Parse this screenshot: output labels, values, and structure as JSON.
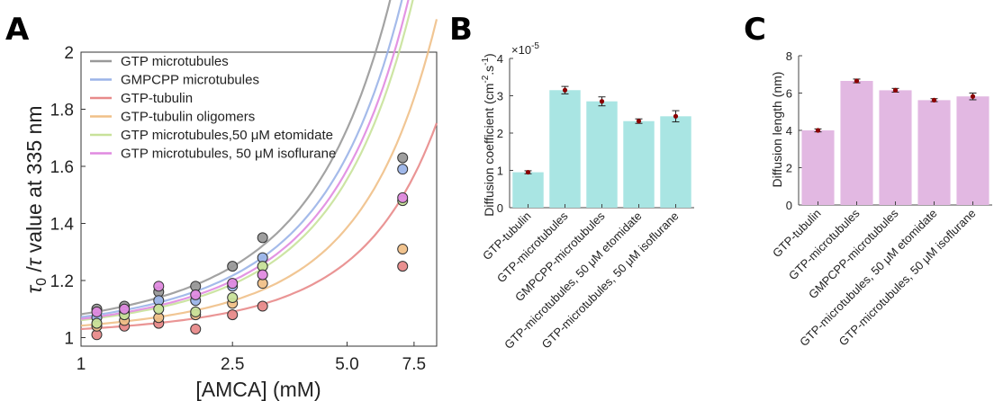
{
  "panel_labels": {
    "a": "A",
    "b": "B",
    "c": "C"
  },
  "chart_data": [
    {
      "panel": "A",
      "type": "scatter",
      "xlabel": "[AMCA] (mM)",
      "ylabel_parts": {
        "tau": "τ",
        "sub": "0",
        "slash": " /",
        "tau2": "τ",
        "rest": " value at 335 nm"
      },
      "xscale": "log",
      "xlim": [
        1,
        8.6
      ],
      "ylim": [
        0.97,
        2.0
      ],
      "xticks": [
        1,
        2.5,
        5.0,
        7.5
      ],
      "xtick_labels": [
        "1",
        "2.5",
        "5.0",
        "7.5"
      ],
      "yticks": [
        1,
        1.2,
        1.4,
        1.6,
        1.8,
        2
      ],
      "ytick_labels": [
        "1",
        "1.2",
        "1.4",
        "1.6",
        "1.8",
        "2"
      ],
      "legend_position": "top-left",
      "series": [
        {
          "name": "GTP microtubules",
          "color": "#999999",
          "x": [
            1.1,
            1.3,
            1.6,
            2.0,
            2.5,
            3.0,
            7.0
          ],
          "y": [
            1.1,
            1.11,
            1.16,
            1.18,
            1.25,
            1.35,
            1.63
          ],
          "fit_x": [
            1.0,
            8.6
          ],
          "fit_a": 1.0,
          "fit_b": 0.0765,
          "fit_c": 0.0053,
          "fit_p": 2.6
        },
        {
          "name": "GMPCPP microtubules",
          "color": "#9bb4e8",
          "x": [
            1.1,
            1.3,
            1.6,
            2.0,
            2.5,
            3.0,
            7.0
          ],
          "y": [
            1.07,
            1.09,
            1.13,
            1.13,
            1.18,
            1.28,
            1.59
          ],
          "fit_a": 1.0,
          "fit_b": 0.067,
          "fit_c": 0.0046,
          "fit_p": 2.6
        },
        {
          "name": "GTP-tubulin",
          "color": "#e88a8a",
          "x": [
            1.1,
            1.3,
            1.6,
            2.0,
            2.5,
            3.0,
            7.0
          ],
          "y": [
            1.01,
            1.04,
            1.05,
            1.03,
            1.08,
            1.11,
            1.25
          ],
          "fit_a": 1.0,
          "fit_b": 0.028,
          "fit_c": 0.0019,
          "fit_p": 2.6
        },
        {
          "name": "GTP-tubulin oligomers",
          "color": "#f0c088",
          "x": [
            1.1,
            1.3,
            1.6,
            2.0,
            2.5,
            3.0,
            7.0
          ],
          "y": [
            1.04,
            1.06,
            1.07,
            1.08,
            1.12,
            1.19,
            1.31
          ],
          "fit_a": 1.0,
          "fit_b": 0.039,
          "fit_c": 0.0029,
          "fit_p": 2.6
        },
        {
          "name": "GTP microtubules,50 μM etomidate",
          "color": "#c8e29a",
          "x": [
            1.1,
            1.3,
            1.6,
            2.0,
            2.5,
            3.0,
            7.0
          ],
          "y": [
            1.05,
            1.08,
            1.1,
            1.09,
            1.14,
            1.25,
            1.48
          ],
          "fit_a": 1.0,
          "fit_b": 0.057,
          "fit_c": 0.0041,
          "fit_p": 2.6
        },
        {
          "name": "GTP microtubules, 50 μM isoflurane",
          "color": "#e08ae0",
          "x": [
            1.1,
            1.3,
            1.6,
            2.0,
            2.5,
            3.0,
            7.0
          ],
          "y": [
            1.09,
            1.1,
            1.18,
            1.15,
            1.19,
            1.22,
            1.49
          ],
          "fit_a": 1.0,
          "fit_b": 0.061,
          "fit_c": 0.0043,
          "fit_p": 2.6
        }
      ]
    },
    {
      "panel": "B",
      "type": "bar",
      "ylabel": "Diffusion coefficient (cm⁻²·s⁻¹)",
      "ylabel_parts": {
        "main": "Diffusion coefficient (cm",
        "sup1": "-2",
        "mid": ".s",
        "sup2": "-1",
        "end": ")"
      },
      "exponent_label": "×10",
      "exponent_power": "-5",
      "categories": [
        "GTP-tubulin",
        "GTP-microtubules",
        "GMPCPP-microtubules",
        "GTP-microtubules, 50 μM etomidate",
        "GTP-microtubules, 50 μM isoflurane"
      ],
      "values": [
        0.95,
        3.15,
        2.85,
        2.32,
        2.45
      ],
      "errors": [
        0.04,
        0.1,
        0.12,
        0.06,
        0.15
      ],
      "ylim": [
        0,
        4
      ],
      "yticks": [
        0,
        1,
        2,
        3,
        4
      ],
      "ytick_labels": [
        "0",
        "1",
        "2",
        "3",
        "4"
      ],
      "bar_color": "#a9e5e3",
      "marker_color": "#8b0000"
    },
    {
      "panel": "C",
      "type": "bar",
      "ylabel": "Diffusion length (nm)",
      "categories": [
        "GTP-tubulin",
        "GTP-microtubules",
        "GMPCPP-microtubules",
        "GTP-microtubules, 50 μM etomidate",
        "GTP-microtubules, 50 μM isoflurane"
      ],
      "values": [
        4.0,
        6.65,
        6.15,
        5.62,
        5.82
      ],
      "errors": [
        0.08,
        0.1,
        0.1,
        0.08,
        0.18
      ],
      "ylim": [
        0,
        8
      ],
      "yticks": [
        0,
        2,
        4,
        6,
        8
      ],
      "ytick_labels": [
        "0",
        "2",
        "4",
        "6",
        "8"
      ],
      "bar_color": "#e2b8e2",
      "marker_color": "#8b0000"
    }
  ]
}
